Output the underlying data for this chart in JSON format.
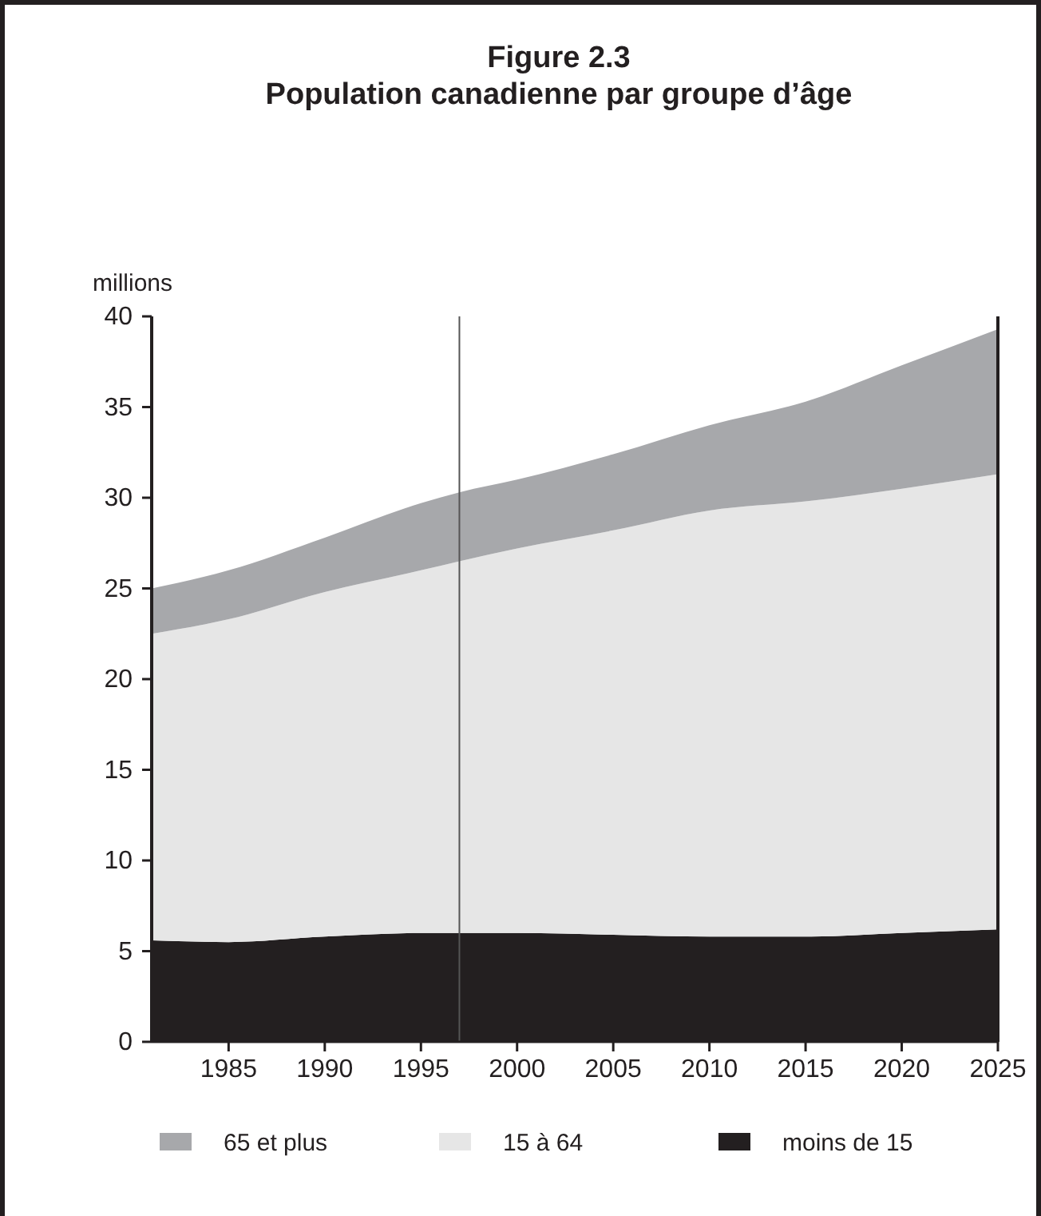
{
  "chart_data": {
    "type": "area",
    "stacked": true,
    "title": "Figure 2.3\nPopulation canadienne par groupe d’âge",
    "ylabel": "millions",
    "x": [
      1981,
      1985,
      1990,
      1995,
      1997,
      2000,
      2005,
      2010,
      2015,
      2020,
      2025
    ],
    "series": [
      {
        "name": "moins de 15",
        "color": "#231f20",
        "values": [
          5.6,
          5.5,
          5.8,
          6.0,
          6.0,
          6.0,
          5.9,
          5.8,
          5.8,
          6.0,
          6.2
        ]
      },
      {
        "name": "15 à 64",
        "color": "#e6e6e6",
        "values": [
          16.9,
          17.8,
          19.0,
          20.0,
          20.5,
          21.2,
          22.3,
          23.5,
          24.0,
          24.5,
          25.1
        ]
      },
      {
        "name": "65 et plus",
        "color": "#a7a8ab",
        "values": [
          2.5,
          2.7,
          3.0,
          3.7,
          3.8,
          3.8,
          4.2,
          4.7,
          5.5,
          6.8,
          8.0
        ]
      }
    ],
    "xlim": [
      1981,
      2025
    ],
    "xticks": [
      1985,
      1990,
      1995,
      2000,
      2005,
      2010,
      2015,
      2020,
      2025
    ],
    "ylim": [
      0,
      40
    ],
    "yticks": [
      0,
      5,
      10,
      15,
      20,
      25,
      30,
      35,
      40
    ],
    "ref_lines": [
      {
        "axis": "x",
        "value": 1997,
        "color": "#555555"
      }
    ],
    "grid": false,
    "legend": "bottom"
  }
}
